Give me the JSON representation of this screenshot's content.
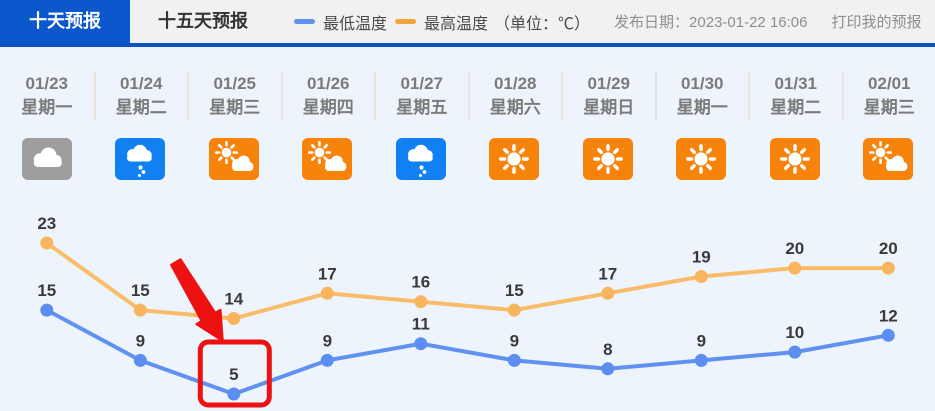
{
  "header": {
    "tabs": [
      {
        "label": "十天预报",
        "active": true
      },
      {
        "label": "十五天预报",
        "active": false
      }
    ],
    "legend": [
      {
        "label": "最低温度",
        "color": "#5f92f0"
      },
      {
        "label": "最高温度",
        "color": "#f5a43b"
      }
    ],
    "unit_label": "（单位：℃）",
    "publish_label": "发布日期：2023-01-22 16:06",
    "print_label": "打印我的预报"
  },
  "days": [
    {
      "date": "01/23",
      "weekday": "星期一",
      "icon": "cloudy-icon"
    },
    {
      "date": "01/24",
      "weekday": "星期二",
      "icon": "rain-icon"
    },
    {
      "date": "01/25",
      "weekday": "星期三",
      "icon": "sun-cloud-icon"
    },
    {
      "date": "01/26",
      "weekday": "星期四",
      "icon": "sun-cloud-icon"
    },
    {
      "date": "01/27",
      "weekday": "星期五",
      "icon": "rain-icon"
    },
    {
      "date": "01/28",
      "weekday": "星期六",
      "icon": "sunny-icon"
    },
    {
      "date": "01/29",
      "weekday": "星期日",
      "icon": "sunny-icon"
    },
    {
      "date": "01/30",
      "weekday": "星期一",
      "icon": "sunny-icon"
    },
    {
      "date": "01/31",
      "weekday": "星期二",
      "icon": "sunny-icon"
    },
    {
      "date": "02/01",
      "weekday": "星期三",
      "icon": "sun-cloud-icon"
    }
  ],
  "chart_data": {
    "type": "line",
    "categories": [
      "01/23",
      "01/24",
      "01/25",
      "01/26",
      "01/27",
      "01/28",
      "01/29",
      "01/30",
      "01/31",
      "02/01"
    ],
    "series": [
      {
        "name": "最高温度",
        "color": "#f9bc69",
        "dot_color": "#f8b55e",
        "values": [
          23,
          15,
          14,
          17,
          16,
          15,
          17,
          19,
          20,
          20
        ]
      },
      {
        "name": "最低温度",
        "color": "#5f92f0",
        "dot_color": "#5b8ef0",
        "values": [
          15,
          9,
          5,
          9,
          11,
          9,
          8,
          9,
          10,
          12
        ]
      }
    ],
    "unit": "℃",
    "legend_position": "top",
    "annotation": {
      "type": "arrow-box-highlight",
      "target_category": "01/25",
      "target_series": "最低温度",
      "target_value": 5,
      "color": "#ed1111"
    }
  },
  "icon_colors": {
    "cloudy-icon": "#9e9e9e",
    "rain-icon": "#1180f2",
    "sun-cloud-icon": "#f8830a",
    "sunny-icon": "#f8830a"
  }
}
